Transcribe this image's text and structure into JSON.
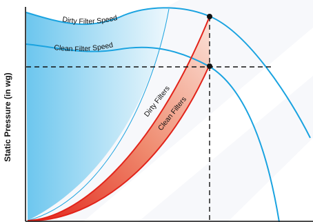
{
  "diagram": {
    "ylabel": "Static Pressure (in wg)",
    "labels": {
      "dirty_filter_speed": "Dirty Filter Speed",
      "clean_filter_speed": "Clean Filter Speed",
      "dirty_filters": "Dirty Filters",
      "clean_filters": "Clean Filters"
    },
    "colors": {
      "fan_curve": "#1aa3e0",
      "system_curve": "#e2231a",
      "fill_blue_start": "#6cc6ee",
      "fill_red_start": "#ef7a5a",
      "axis": "#111111",
      "background_stripe": "#eef0f6"
    }
  }
}
